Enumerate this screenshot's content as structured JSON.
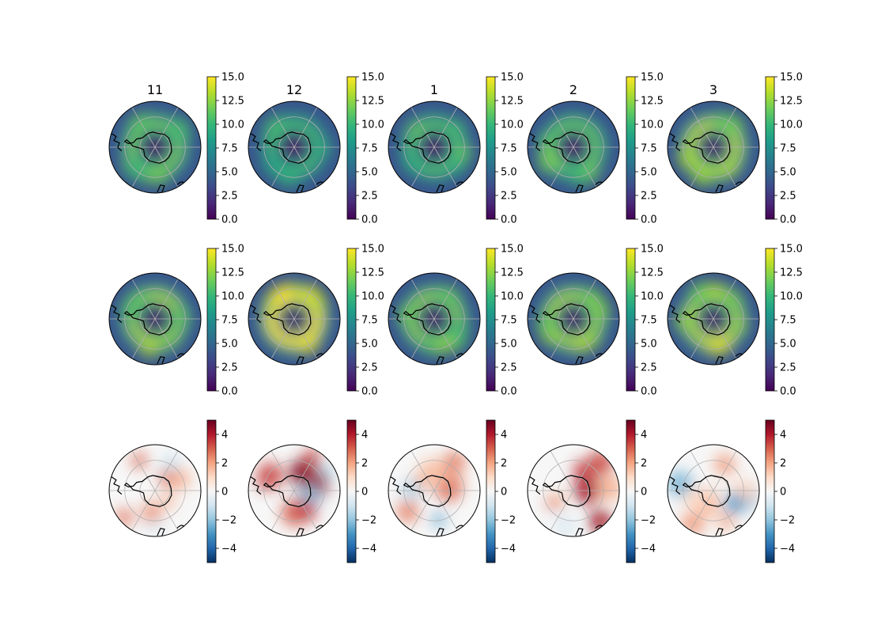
{
  "chart_data": {
    "type": "heatmap",
    "projection": "south-polar-stereographic",
    "columns": [
      "11",
      "12",
      "1",
      "2",
      "3"
    ],
    "rows": [
      {
        "row": 1,
        "colormap": "viridis",
        "clim": [
          0,
          15
        ],
        "colorbar_ticks": [
          "0.0",
          "2.5",
          "5.0",
          "7.5",
          "10.0",
          "12.5",
          "15.0"
        ],
        "panels": [
          {
            "month": "11",
            "ring_peak": 12
          },
          {
            "month": "12",
            "ring_peak": 10.5
          },
          {
            "month": "1",
            "ring_peak": 11
          },
          {
            "month": "2",
            "ring_peak": 11.5
          },
          {
            "month": "3",
            "ring_peak": 13.5
          }
        ]
      },
      {
        "row": 2,
        "colormap": "viridis",
        "clim": [
          0,
          15
        ],
        "colorbar_ticks": [
          "0.0",
          "2.5",
          "5.0",
          "7.5",
          "10.0",
          "12.5",
          "15.0"
        ],
        "panels": [
          {
            "month": "11",
            "ring_peak": 13
          },
          {
            "month": "12",
            "ring_peak": 15
          },
          {
            "month": "1",
            "ring_peak": 12.5
          },
          {
            "month": "2",
            "ring_peak": 13
          },
          {
            "month": "3",
            "ring_peak": 13.5
          }
        ]
      },
      {
        "row": 3,
        "colormap": "RdBu_r",
        "clim": [
          -5,
          5
        ],
        "colorbar_ticks": [
          "−4",
          "−2",
          "0",
          "2",
          "4"
        ],
        "panels": [
          {
            "month": "11",
            "anomaly_max": 3.5,
            "anomaly_min": -2
          },
          {
            "month": "12",
            "anomaly_max": 5,
            "anomaly_min": -2.5
          },
          {
            "month": "1",
            "anomaly_max": 3,
            "anomaly_min": -3
          },
          {
            "month": "2",
            "anomaly_max": 4.5,
            "anomaly_min": -1.5
          },
          {
            "month": "3",
            "anomaly_max": 2.5,
            "anomaly_min": -3.5
          }
        ]
      }
    ]
  }
}
